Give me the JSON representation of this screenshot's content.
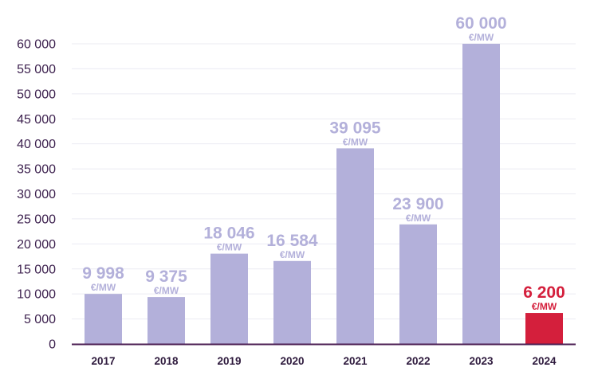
{
  "chart_data": {
    "type": "bar",
    "title": "",
    "xlabel": "",
    "ylabel": "",
    "categories": [
      "2017",
      "2018",
      "2019",
      "2020",
      "2021",
      "2022",
      "2023",
      "2024"
    ],
    "values": [
      9998,
      9375,
      18046,
      16584,
      39095,
      23900,
      60000,
      6200
    ],
    "value_labels": [
      "9 998",
      "9 375",
      "18 046",
      "16 584",
      "39 095",
      "23 900",
      "60 000",
      "6 200"
    ],
    "unit_label": "€/MW",
    "ylim": [
      0,
      60000
    ],
    "yticks": [
      0,
      5000,
      10000,
      15000,
      20000,
      25000,
      30000,
      35000,
      40000,
      45000,
      50000,
      55000,
      60000
    ],
    "ytick_labels": [
      "0",
      "5 000",
      "10 000",
      "15 000",
      "20 000",
      "25 000",
      "30 000",
      "35 000",
      "40 000",
      "45 000",
      "50 000",
      "55 000",
      "60 000"
    ],
    "grid": true,
    "legend": "none",
    "colors": {
      "bar": "#b3b0da",
      "highlight_bar": "#d41f3c",
      "highlight_index": 7,
      "label": "#b3b0da",
      "highlight_label": "#d41f3c",
      "axis": "#4b1d52",
      "grid": "#ebebf2",
      "tick_text": "#3b1f4d"
    }
  }
}
